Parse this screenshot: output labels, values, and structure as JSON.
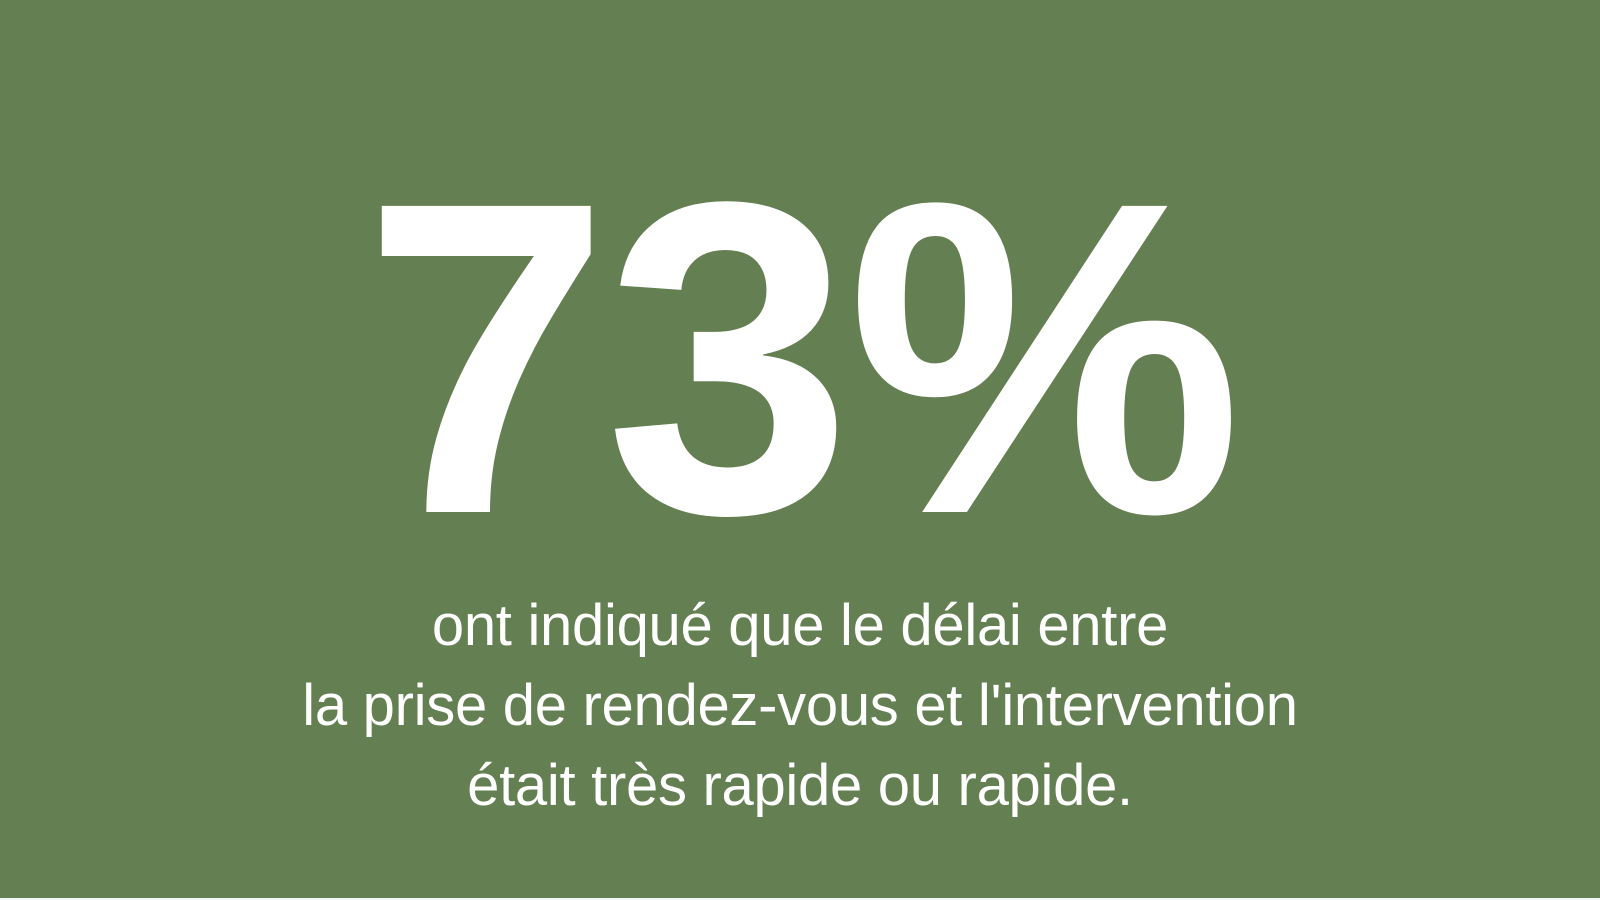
{
  "colors": {
    "background": "#647f52",
    "text": "#ffffff",
    "bottom_edge": "#f5f5f3"
  },
  "stat": {
    "value": "73%"
  },
  "caption": {
    "lines": [
      "ont indiqué que le délai entre",
      "la prise de rendez-vous et l'intervention",
      "était très rapide ou rapide."
    ]
  }
}
